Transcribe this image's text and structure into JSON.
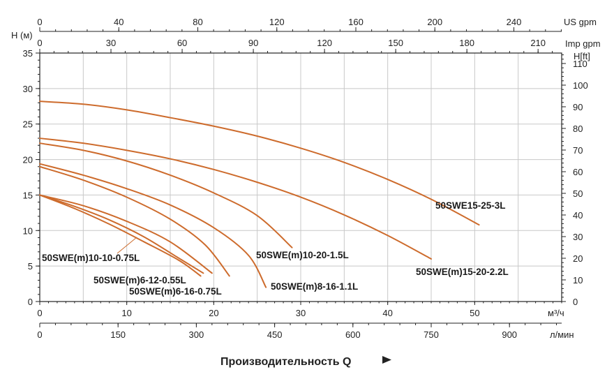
{
  "chart_data": {
    "type": "line",
    "ylabel": "H (м)",
    "xlabel": "Производительность Q",
    "xlim": [
      0,
      60
    ],
    "ylim": [
      0,
      35
    ],
    "grid": true,
    "axes": {
      "x_primary": {
        "unit": "м³/ч",
        "ticks": [
          "0",
          "10",
          "20",
          "30",
          "40",
          "50"
        ],
        "values": [
          0,
          10,
          20,
          30,
          40,
          50
        ]
      },
      "x_lmin": {
        "unit": "л/мин",
        "ticks": [
          "0",
          "150",
          "300",
          "450",
          "600",
          "750",
          "900"
        ],
        "values": [
          0,
          150,
          300,
          450,
          600,
          750,
          900
        ]
      },
      "x_usgpm": {
        "unit": "US gpm",
        "ticks": [
          "0",
          "40",
          "80",
          "120",
          "160",
          "200",
          "240"
        ],
        "values": [
          0,
          40,
          80,
          120,
          160,
          200,
          240
        ]
      },
      "x_impgpm": {
        "unit": "Imp gpm",
        "ticks": [
          "0",
          "30",
          "60",
          "90",
          "120",
          "150",
          "180",
          "210"
        ],
        "values": [
          0,
          30,
          60,
          90,
          120,
          150,
          180,
          210
        ]
      },
      "y_left": {
        "unit": "H (м)",
        "ticks": [
          "0",
          "5",
          "10",
          "15",
          "20",
          "25",
          "30",
          "35"
        ],
        "values": [
          0,
          5,
          10,
          15,
          20,
          25,
          30,
          35
        ]
      },
      "y_right": {
        "unit": "H[ft]",
        "ticks": [
          "0",
          "10",
          "20",
          "30",
          "40",
          "50",
          "60",
          "70",
          "80",
          "90",
          "100",
          "110"
        ],
        "values": [
          0,
          10,
          20,
          30,
          40,
          50,
          60,
          70,
          80,
          90,
          100,
          110
        ]
      }
    },
    "series": [
      {
        "name": "50SWE15-25-3L",
        "x": [
          0,
          5,
          10,
          15,
          20,
          25,
          30,
          35,
          40,
          45,
          50.5
        ],
        "y": [
          28.2,
          27.8,
          27.0,
          25.9,
          24.7,
          23.3,
          21.6,
          19.6,
          17.2,
          14.4,
          10.8
        ]
      },
      {
        "name": "50SWE(m)15-20-2.2L",
        "x": [
          0,
          5,
          10,
          15,
          20,
          25,
          30,
          35,
          40,
          45
        ],
        "y": [
          23.0,
          22.3,
          21.3,
          20.1,
          18.6,
          16.8,
          14.7,
          12.2,
          9.3,
          6.0
        ]
      },
      {
        "name": "50SWE(m)10-20-1.5L",
        "x": [
          0,
          5,
          10,
          15,
          20,
          25,
          29
        ],
        "y": [
          22.3,
          21.3,
          19.8,
          17.8,
          15.3,
          12.1,
          7.6
        ]
      },
      {
        "name": "50SWE(m)8-16-1.1L",
        "x": [
          0,
          5,
          10,
          15,
          20,
          24,
          26
        ],
        "y": [
          19.4,
          17.8,
          15.9,
          13.6,
          10.4,
          6.5,
          2.0
        ]
      },
      {
        "name": "50SWE(m)6-16-0.75L",
        "x": [
          0,
          5,
          10,
          15,
          19,
          21.8
        ],
        "y": [
          19.0,
          17.1,
          14.7,
          11.6,
          8.0,
          3.6
        ]
      },
      {
        "name": "50SWE(m)10-10-0.75L",
        "x": [
          0,
          5,
          10,
          15,
          19.8
        ],
        "y": [
          15.0,
          13.5,
          11.3,
          8.4,
          4.0
        ]
      },
      {
        "name": "50SWE(m)6-12-0.55L",
        "x": [
          0,
          4,
          8,
          12,
          16,
          18.8
        ],
        "y": [
          15.0,
          13.4,
          11.5,
          9.1,
          6.1,
          4.0
        ]
      },
      {
        "name": "",
        "x": [
          0,
          4,
          8,
          12,
          16,
          18.5
        ],
        "y": [
          15.0,
          13.1,
          10.9,
          8.4,
          5.8,
          3.6
        ]
      }
    ],
    "labels": [
      {
        "text": "50SWE15-25-3L"
      },
      {
        "text": "50SWE(m)15-20-2.2L"
      },
      {
        "text": "50SWE(m)10-20-1.5L"
      },
      {
        "text": "50SWE(m)8-16-1.1L"
      },
      {
        "text": "50SWE(m)6-16-0.75L"
      },
      {
        "text": "50SWE(m)10-10-0.75L"
      },
      {
        "text": "50SWE(m)6-12-0.55L"
      }
    ],
    "colors": {
      "curve": "#cd6b2c",
      "grid": "#c8c8c8",
      "axis": "#222222"
    }
  },
  "axis_units": {
    "us_gpm": "US gpm",
    "imp_gpm": "Imp gpm",
    "h_ft": "H[ft]",
    "h_m": "H (м)",
    "m3h": "м³/ч",
    "lmin": "л/мин"
  },
  "x_title": "Производительность Q"
}
